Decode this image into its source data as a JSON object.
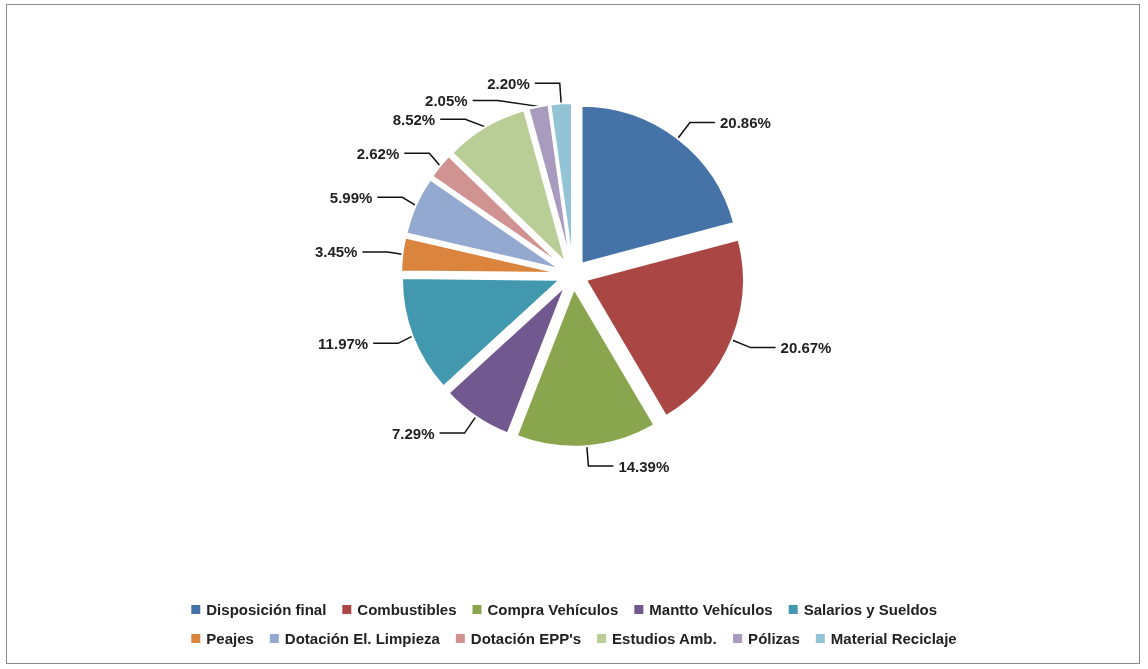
{
  "chart_data": {
    "type": "pie",
    "legend": "bottom",
    "categories": [
      "Disposición final",
      "Combustibles",
      "Compra Vehículos",
      "Mantto Vehículos",
      "Salarios y Sueldos",
      "Peajes",
      "Dotación El. Limpieza",
      "Dotación EPP's",
      "Estudios Amb.",
      "Pólizas",
      "Material Reciclaje"
    ],
    "values": [
      20.86,
      20.67,
      14.39,
      7.29,
      11.97,
      3.45,
      5.99,
      2.62,
      8.52,
      2.05,
      2.2
    ],
    "value_labels": [
      "20.86%",
      "20.67%",
      "14.39%",
      "7.29%",
      "11.97%",
      "3.45%",
      "5.99%",
      "2.62%",
      "8.52%",
      "2.05%",
      "2.20%"
    ],
    "colors": [
      "#4572a7",
      "#aa4643",
      "#89a54e",
      "#71588f",
      "#4198af",
      "#db843d",
      "#93a9cf",
      "#d19392",
      "#b9cd96",
      "#a99bbd",
      "#92c4d5"
    ]
  }
}
